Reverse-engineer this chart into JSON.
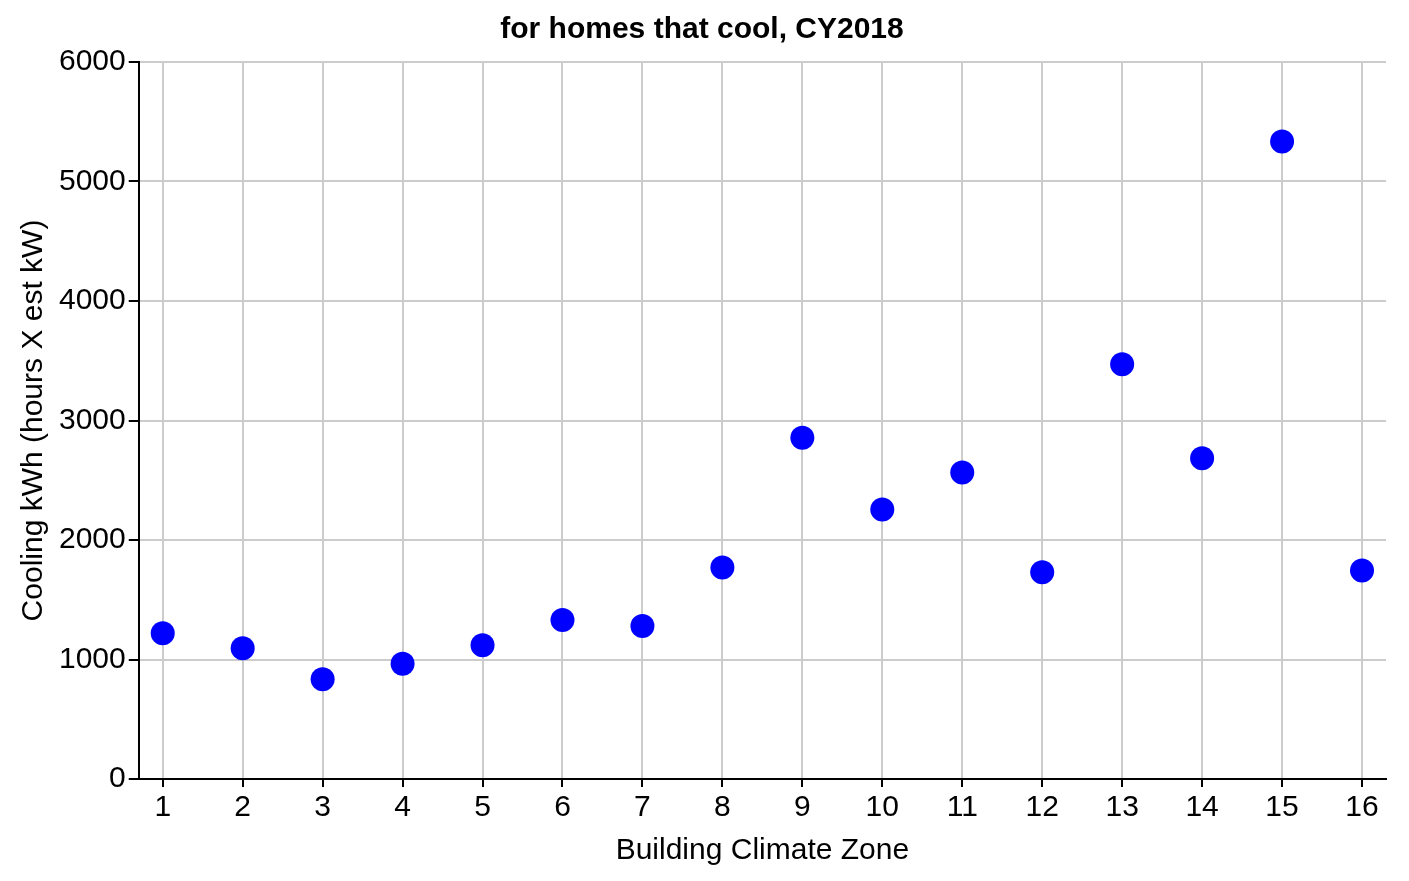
{
  "chart_data": {
    "type": "scatter",
    "title": "for homes that cool, CY2018",
    "xlabel": "Building Climate Zone",
    "ylabel": "Cooling kWh (hours X est kW)",
    "x": [
      1,
      2,
      3,
      4,
      5,
      6,
      7,
      8,
      9,
      10,
      11,
      12,
      13,
      14,
      15,
      16
    ],
    "series": [
      {
        "color": "#0000ff",
        "values": [
          1220,
          1095,
          835,
          965,
          1120,
          1330,
          1280,
          1770,
          2855,
          2255,
          2565,
          1730,
          3470,
          2685,
          5335,
          1745
        ]
      }
    ],
    "xlim": [
      0.7,
      16.3
    ],
    "xticks": [
      1,
      2,
      3,
      4,
      5,
      6,
      7,
      8,
      9,
      10,
      11,
      12,
      13,
      14,
      15,
      16
    ],
    "ylim": [
      0,
      6000
    ],
    "yticks": [
      0,
      1000,
      2000,
      3000,
      4000,
      5000,
      6000
    ],
    "grid": true,
    "marker": "circle",
    "legend": false
  }
}
